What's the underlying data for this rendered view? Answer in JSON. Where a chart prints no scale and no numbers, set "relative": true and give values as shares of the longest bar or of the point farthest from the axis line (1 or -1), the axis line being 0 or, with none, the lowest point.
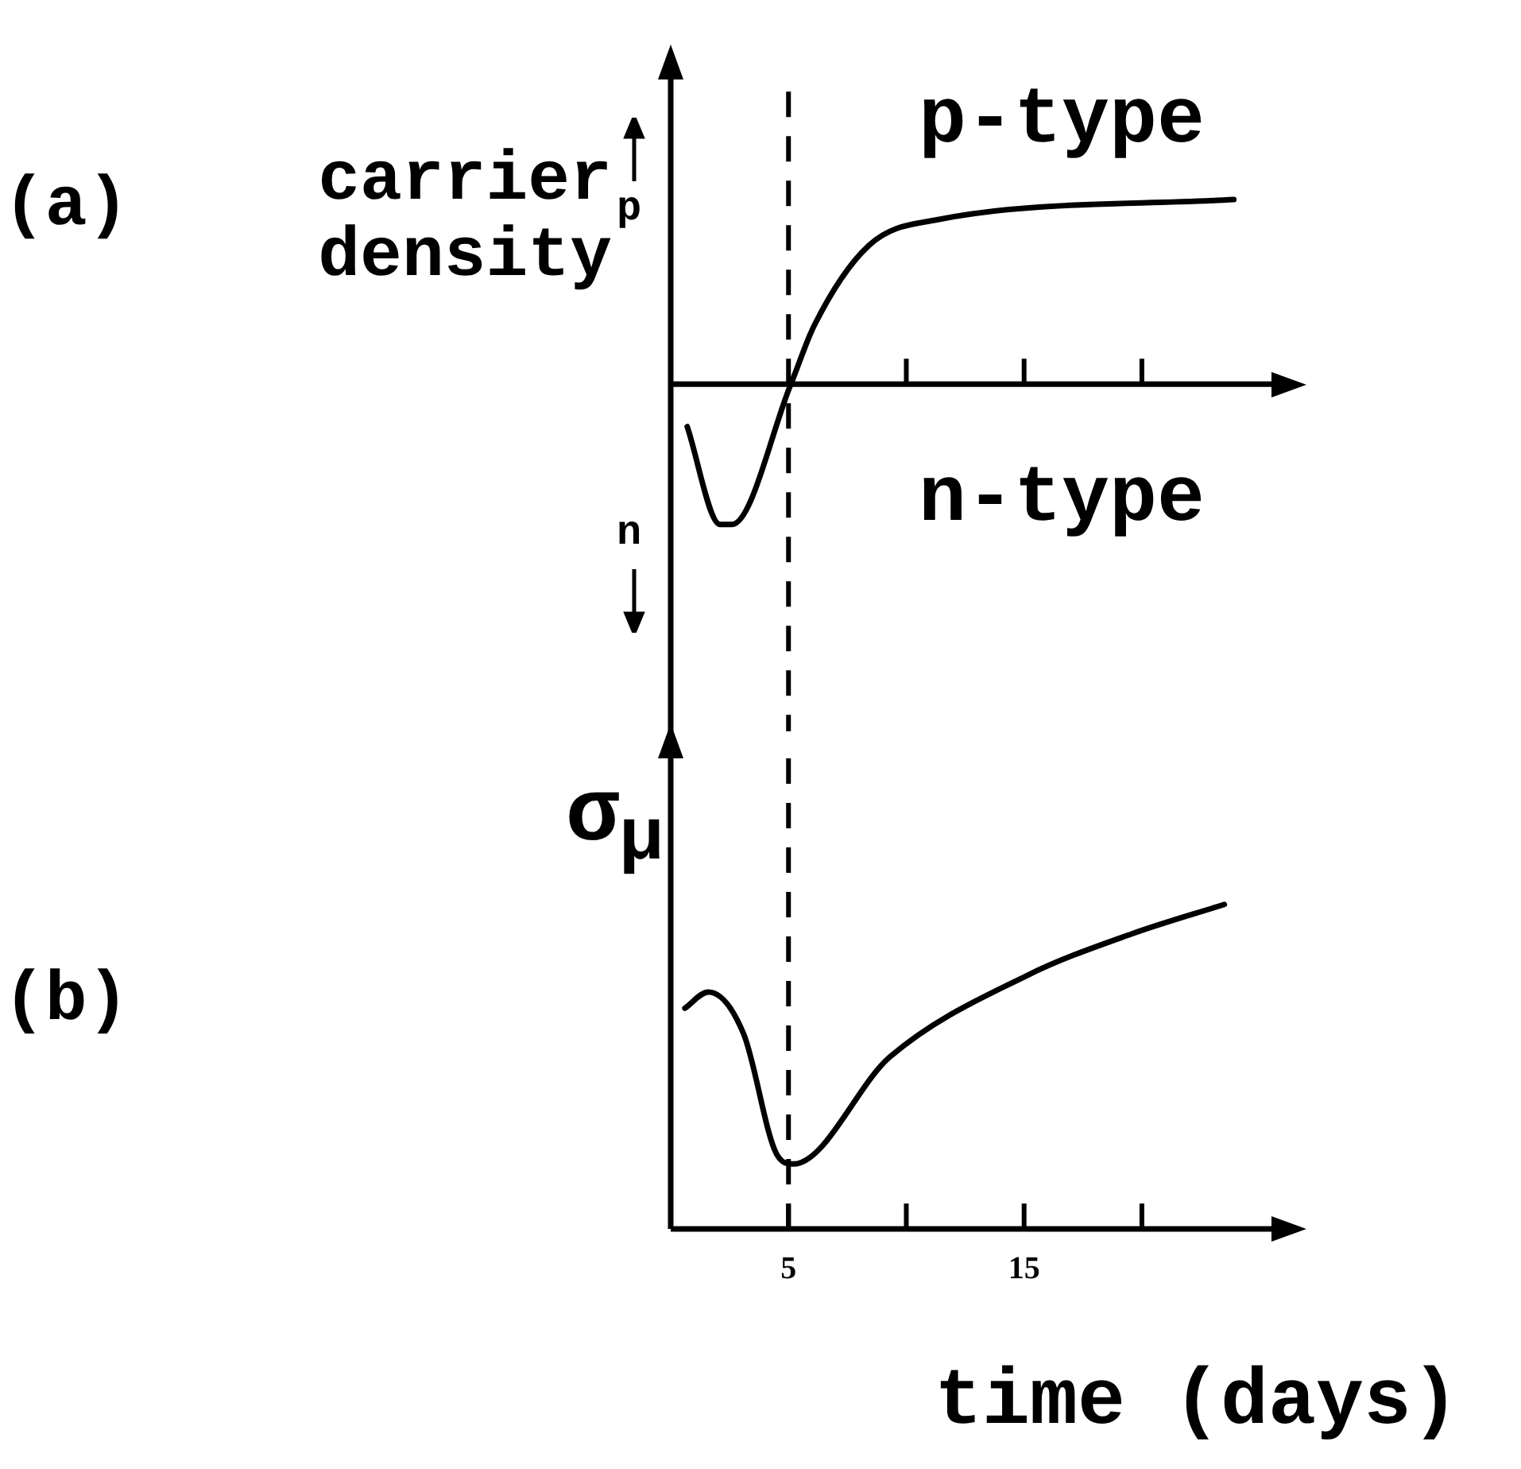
{
  "chart_data": [
    {
      "type": "line",
      "relative": true,
      "ylabel": "carrier density",
      "xlim": [
        0,
        25.5
      ],
      "xticks": [
        {
          "value": 10,
          "label": null
        },
        {
          "value": 15,
          "label": null
        },
        {
          "value": 20,
          "label": null
        }
      ],
      "tick_labels": false,
      "marker": "none",
      "line_style": "solid",
      "grid": false,
      "legend": false,
      "annotations": [
        "(a)",
        "p",
        "n",
        "p-type",
        "n-type"
      ],
      "ref_lines": [
        {
          "axis": "x",
          "value": 5,
          "label": null,
          "line_style": "dashed",
          "color": "#000000"
        }
      ],
      "series": [
        {
          "color": "#000000",
          "x": [
            0.7,
            2.1,
            2.6,
            5.1,
            6.1,
            8.4,
            11.3,
            23.9
          ],
          "values": [
            -0.23,
            -0.76,
            -0.76,
            0,
            0.32,
            0.75,
            0.89,
            1
          ]
        }
      ]
    },
    {
      "type": "line",
      "relative": true,
      "ylabel": "σ$_{μ}$",
      "xlabel": "time (days)",
      "xlim": [
        0,
        25.5
      ],
      "xticks": [
        5,
        {
          "value": 10,
          "label": null
        },
        15,
        {
          "value": 20,
          "label": null
        }
      ],
      "tick_labels": "x",
      "marker": "none",
      "line_style": "solid",
      "grid": false,
      "legend": false,
      "annotations": [
        "(b)"
      ],
      "ref_lines": [
        {
          "axis": "x",
          "value": 5,
          "label": null,
          "line_style": "dashed",
          "color": "#000000"
        }
      ],
      "series": [
        {
          "color": "#000000",
          "x": [
            0.6,
            1.6,
            3.1,
            4.5,
            5.2,
            9.3,
            15.1,
            19.6,
            23.5
          ],
          "values": [
            0.68,
            0.73,
            0.6,
            0.23,
            0.2,
            0.53,
            0.78,
            0.91,
            1
          ]
        }
      ]
    }
  ]
}
